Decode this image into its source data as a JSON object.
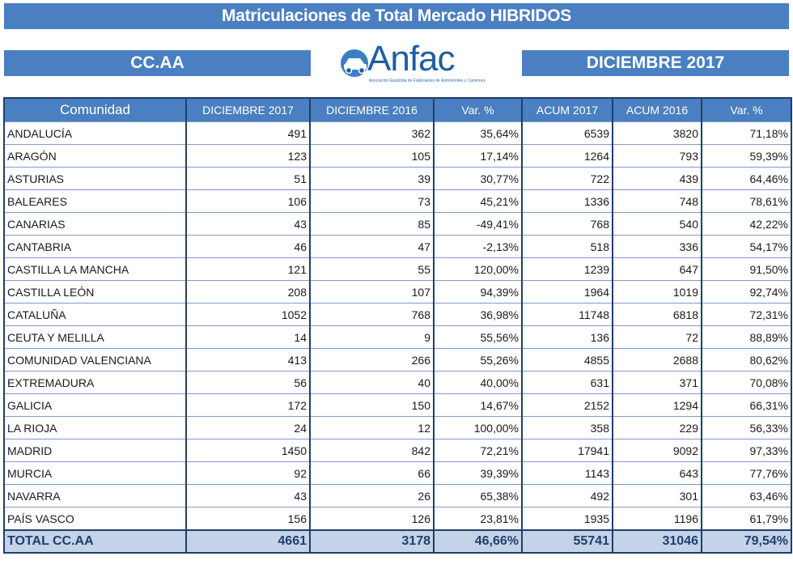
{
  "title": "Matriculaciones de Total Mercado HIBRIDOS",
  "left_label": "CC.AA",
  "right_label": "DICIEMBRE   2017",
  "logo": {
    "text": "Anfac",
    "subtitle": "Asociación Española de Fabricantes de Automóviles y Camiones"
  },
  "table": {
    "headers": [
      "Comunidad",
      "DICIEMBRE  2017",
      "DICIEMBRE  2016",
      "Var. %",
      "ACUM 2017",
      "ACUM 2016",
      "Var. %"
    ],
    "rows": [
      [
        "ANDALUCÍA",
        "491",
        "362",
        "35,64%",
        "6539",
        "3820",
        "71,18%"
      ],
      [
        "ARAGÓN",
        "123",
        "105",
        "17,14%",
        "1264",
        "793",
        "59,39%"
      ],
      [
        "ASTURIAS",
        "51",
        "39",
        "30,77%",
        "722",
        "439",
        "64,46%"
      ],
      [
        "BALEARES",
        "106",
        "73",
        "45,21%",
        "1336",
        "748",
        "78,61%"
      ],
      [
        "CANARIAS",
        "43",
        "85",
        "-49,41%",
        "768",
        "540",
        "42,22%"
      ],
      [
        "CANTABRIA",
        "46",
        "47",
        "-2,13%",
        "518",
        "336",
        "54,17%"
      ],
      [
        "CASTILLA LA MANCHA",
        "121",
        "55",
        "120,00%",
        "1239",
        "647",
        "91,50%"
      ],
      [
        "CASTILLA LEÓN",
        "208",
        "107",
        "94,39%",
        "1964",
        "1019",
        "92,74%"
      ],
      [
        "CATALUÑA",
        "1052",
        "768",
        "36,98%",
        "11748",
        "6818",
        "72,31%"
      ],
      [
        "CEUTA Y MELILLA",
        "14",
        "9",
        "55,56%",
        "136",
        "72",
        "88,89%"
      ],
      [
        "COMUNIDAD VALENCIANA",
        "413",
        "266",
        "55,26%",
        "4855",
        "2688",
        "80,62%"
      ],
      [
        "EXTREMADURA",
        "56",
        "40",
        "40,00%",
        "631",
        "371",
        "70,08%"
      ],
      [
        "GALICIA",
        "172",
        "150",
        "14,67%",
        "2152",
        "1294",
        "66,31%"
      ],
      [
        "LA RIOJA",
        "24",
        "12",
        "100,00%",
        "358",
        "229",
        "56,33%"
      ],
      [
        "MADRID",
        "1450",
        "842",
        "72,21%",
        "17941",
        "9092",
        "97,33%"
      ],
      [
        "MURCIA",
        "92",
        "66",
        "39,39%",
        "1143",
        "643",
        "77,76%"
      ],
      [
        "NAVARRA",
        "43",
        "26",
        "65,38%",
        "492",
        "301",
        "63,46%"
      ],
      [
        "PAÍS VASCO",
        "156",
        "126",
        "23,81%",
        "1935",
        "1196",
        "61,79%"
      ]
    ],
    "total": [
      "TOTAL CC.AA",
      "4661",
      "3178",
      "46,66%",
      "55741",
      "31046",
      "79,54%"
    ]
  }
}
